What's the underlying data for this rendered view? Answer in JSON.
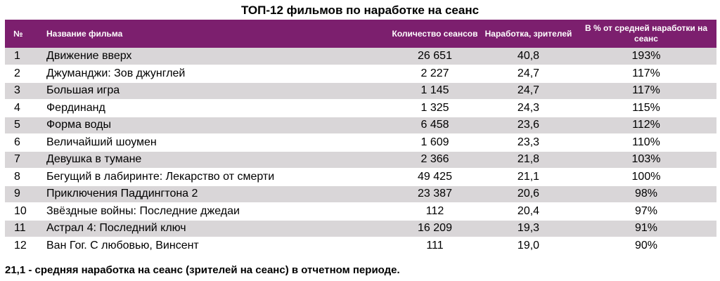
{
  "title": "ТОП-12 фильмов по наработке на сеанс",
  "columns": {
    "num": "№",
    "name": "Название фильма",
    "sessions": "Количество сеансов",
    "avg": "Наработка, зрителей",
    "pct": "В % от средней наработки на сеанс"
  },
  "rows": [
    {
      "num": "1",
      "name": "Движение вверх",
      "sessions": "26 651",
      "avg": "40,8",
      "pct": "193%"
    },
    {
      "num": "2",
      "name": "Джуманджи: Зов джунглей",
      "sessions": "2 227",
      "avg": "24,7",
      "pct": "117%"
    },
    {
      "num": "3",
      "name": "Большая игра",
      "sessions": "1 145",
      "avg": "24,7",
      "pct": "117%"
    },
    {
      "num": "4",
      "name": "Фердинанд",
      "sessions": "1 325",
      "avg": "24,3",
      "pct": "115%"
    },
    {
      "num": "5",
      "name": "Форма воды",
      "sessions": "6 458",
      "avg": "23,6",
      "pct": "112%"
    },
    {
      "num": "6",
      "name": "Величайший шоумен",
      "sessions": "1 609",
      "avg": "23,3",
      "pct": "110%"
    },
    {
      "num": "7",
      "name": "Девушка в тумане",
      "sessions": "2 366",
      "avg": "21,8",
      "pct": "103%"
    },
    {
      "num": "8",
      "name": "Бегущий в лабиринте: Лекарство от смерти",
      "sessions": "49 425",
      "avg": "21,1",
      "pct": "100%"
    },
    {
      "num": "9",
      "name": "Приключения Паддингтона 2",
      "sessions": "23 387",
      "avg": "20,6",
      "pct": "98%"
    },
    {
      "num": "10",
      "name": "Звёздные войны: Последние джедаи",
      "sessions": "112",
      "avg": "20,4",
      "pct": "97%"
    },
    {
      "num": "11",
      "name": "Астрал 4: Последний ключ",
      "sessions": "16 209",
      "avg": "19,3",
      "pct": "91%"
    },
    {
      "num": "12",
      "name": "Ван Гог. С любовью, Винсент",
      "sessions": "111",
      "avg": "19,0",
      "pct": "90%"
    }
  ],
  "footnote": "21,1 - средняя наработка на сеанс (зрителей на сеанс) в отчетном периоде.",
  "colors": {
    "header_bg": "#7c1f6e",
    "stripe": "#d9d6d8"
  }
}
